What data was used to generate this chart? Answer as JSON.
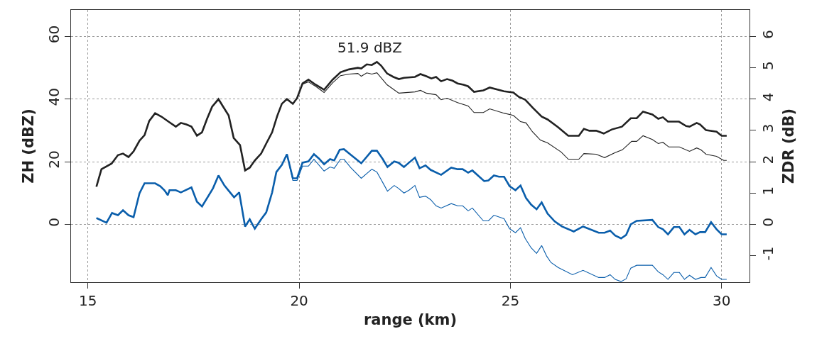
{
  "chart_data": {
    "type": "line",
    "xlabel": "range (km)",
    "ylabel": "ZH (dBZ)",
    "y2label": "ZDR (dB)",
    "xlim": [
      14.6,
      30.66
    ],
    "xticks": [
      15,
      20,
      25,
      30
    ],
    "ylim": [
      -18.5,
      68.5
    ],
    "yticks": [
      0,
      20,
      40,
      60
    ],
    "y2lim": [
      -1.85,
      6.85
    ],
    "y2ticks": [
      -1,
      0,
      1,
      2,
      3,
      4,
      5,
      6
    ],
    "grid": true,
    "marker": "none",
    "line_style": "solid",
    "annotations": [
      {
        "text": "51.9 dBZ",
        "x": 21.84,
        "y": 51.9
      }
    ],
    "series": [
      {
        "color": "#222222",
        "x": [
          15.2,
          15.32,
          15.56,
          15.71,
          15.83,
          15.96,
          16.08,
          16.22,
          16.34,
          16.45,
          16.59,
          16.74,
          16.93,
          17.08,
          17.2,
          17.33,
          17.45,
          17.58,
          17.7,
          17.82,
          17.94,
          18.09,
          18.19,
          18.33,
          18.45,
          18.6,
          18.72,
          18.83,
          18.95,
          19.1,
          19.22,
          19.36,
          19.48,
          19.59,
          19.71,
          19.85,
          19.95,
          20.08,
          20.22,
          20.39,
          20.59,
          20.79,
          20.98,
          21.18,
          21.39,
          21.47,
          21.6,
          21.72,
          21.84,
          21.94,
          22.08,
          22.23,
          22.36,
          22.48,
          22.74,
          22.87,
          23.01,
          23.13,
          23.24,
          23.36,
          23.5,
          23.63,
          23.75,
          23.89,
          24.0,
          24.14,
          24.36,
          24.51,
          24.85,
          25.07,
          25.2,
          25.35,
          25.54,
          25.74,
          25.88,
          26.13,
          26.37,
          26.62,
          26.74,
          26.87,
          27.03,
          27.21,
          27.4,
          27.64,
          27.85,
          27.99,
          28.14,
          28.36,
          28.5,
          28.61,
          28.73,
          28.99,
          29.16,
          29.24,
          29.41,
          29.49,
          29.63,
          29.88,
          30.0,
          30.12
        ],
        "values": [
          12,
          17.6,
          19.4,
          22.1,
          22.6,
          21.5,
          23.3,
          26.7,
          28.5,
          33,
          35.5,
          34.4,
          32.6,
          31.2,
          32.4,
          31.9,
          31.2,
          28.3,
          29.4,
          33.7,
          37.6,
          40,
          37.8,
          34.8,
          27.6,
          25.3,
          17.2,
          18.1,
          20.4,
          22.6,
          25.8,
          29.4,
          34.6,
          38.5,
          40,
          38.5,
          40.3,
          45,
          46.2,
          44.6,
          43,
          46.2,
          48.6,
          49.5,
          50,
          49.8,
          51.1,
          50.9,
          51.9,
          50.7,
          48.2,
          47.1,
          46.4,
          46.8,
          47.1,
          48,
          47.3,
          46.6,
          47.1,
          45.7,
          46.4,
          45.9,
          45,
          44.6,
          44.1,
          42.3,
          42.8,
          43.7,
          42.5,
          42.1,
          40.7,
          39.8,
          37.1,
          34.4,
          33.5,
          31,
          28.3,
          28.3,
          30.5,
          29.9,
          29.9,
          29,
          30.3,
          31.2,
          33.9,
          33.9,
          36,
          35.1,
          33.7,
          34.2,
          32.8,
          32.8,
          31.4,
          31.2,
          32.4,
          31.9,
          30.1,
          29.6,
          28.3,
          28.3
        ]
      },
      {
        "color": "#222222",
        "x": [
          20.08,
          20.22,
          20.39,
          20.59,
          20.79,
          20.98,
          21.18,
          21.39,
          21.47,
          21.6,
          21.72,
          21.84,
          22.08,
          22.36,
          22.74,
          22.87,
          23.01,
          23.24,
          23.36,
          23.5,
          23.75,
          24.0,
          24.14,
          24.36,
          24.51,
          24.85,
          25.07,
          25.24,
          25.37,
          25.52,
          25.71,
          25.88,
          26.2,
          26.37,
          26.62,
          26.74,
          27.03,
          27.23,
          27.48,
          27.65,
          27.87,
          27.99,
          28.14,
          28.36,
          28.5,
          28.61,
          28.75,
          29.0,
          29.24,
          29.41,
          29.51,
          29.63,
          29.88,
          30.05,
          30.12
        ],
        "values": [
          44.8,
          45.5,
          44.1,
          42.1,
          45.2,
          47.5,
          48,
          48.2,
          47.3,
          48.4,
          48,
          48.4,
          44.6,
          41.9,
          42.3,
          42.8,
          41.9,
          41.4,
          39.8,
          40.3,
          38.9,
          37.8,
          35.7,
          35.7,
          36.9,
          35.5,
          34.8,
          32.8,
          32.4,
          29.6,
          26.9,
          26,
          23.1,
          20.8,
          20.8,
          22.6,
          22.4,
          21.3,
          22.9,
          23.8,
          26.5,
          26.5,
          28.3,
          27.1,
          25.8,
          26.2,
          24.7,
          24.7,
          23.3,
          24.4,
          23.8,
          22.4,
          21.7,
          20.4,
          20.4
        ]
      },
      {
        "color": "#0a5eab",
        "axis": "y2",
        "x": [
          15.2,
          15.44,
          15.57,
          15.71,
          15.83,
          15.96,
          16.08,
          16.22,
          16.34,
          16.59,
          16.71,
          16.81,
          16.89,
          16.93,
          17.08,
          17.2,
          17.45,
          17.58,
          17.7,
          17.96,
          18.09,
          18.23,
          18.34,
          18.46,
          18.58,
          18.72,
          18.83,
          18.95,
          19.1,
          19.22,
          19.36,
          19.46,
          19.59,
          19.71,
          19.85,
          19.95,
          20.08,
          20.22,
          20.35,
          20.47,
          20.59,
          20.73,
          20.83,
          20.96,
          21.06,
          21.22,
          21.47,
          21.72,
          21.84,
          21.98,
          22.09,
          22.25,
          22.35,
          22.48,
          22.6,
          22.74,
          22.85,
          22.99,
          23.11,
          23.36,
          23.6,
          23.75,
          23.87,
          24.0,
          24.1,
          24.38,
          24.48,
          24.61,
          24.73,
          24.85,
          24.98,
          25.12,
          25.24,
          25.37,
          25.49,
          25.62,
          25.74,
          25.88,
          26.05,
          26.22,
          26.5,
          26.72,
          27.09,
          27.23,
          27.36,
          27.48,
          27.62,
          27.74,
          27.85,
          27.99,
          28.36,
          28.5,
          28.61,
          28.73,
          28.87,
          29.0,
          29.12,
          29.24,
          29.38,
          29.49,
          29.61,
          29.75,
          29.88,
          30.0,
          30.12
        ],
        "values": [
          0.2,
          0.05,
          0.36,
          0.29,
          0.45,
          0.29,
          0.23,
          0.99,
          1.31,
          1.31,
          1.22,
          1.09,
          0.93,
          1.09,
          1.09,
          1.02,
          1.18,
          0.72,
          0.57,
          1.15,
          1.56,
          1.24,
          1.06,
          0.86,
          1.02,
          -0.07,
          0.16,
          -0.14,
          0.16,
          0.38,
          1.02,
          1.67,
          1.9,
          2.24,
          1.47,
          1.47,
          1.97,
          2.01,
          2.24,
          2.1,
          1.92,
          2.08,
          2.04,
          2.38,
          2.4,
          2.22,
          1.95,
          2.35,
          2.35,
          2.08,
          1.83,
          2.01,
          1.97,
          1.83,
          1.97,
          2.13,
          1.79,
          1.88,
          1.74,
          1.58,
          1.81,
          1.76,
          1.76,
          1.65,
          1.72,
          1.38,
          1.4,
          1.56,
          1.52,
          1.52,
          1.22,
          1.09,
          1.24,
          0.84,
          0.63,
          0.48,
          0.7,
          0.34,
          0.09,
          -0.07,
          -0.23,
          -0.07,
          -0.27,
          -0.27,
          -0.2,
          -0.36,
          -0.45,
          -0.34,
          0,
          0.11,
          0.14,
          -0.09,
          -0.16,
          -0.32,
          -0.09,
          -0.09,
          -0.32,
          -0.18,
          -0.32,
          -0.25,
          -0.25,
          0.07,
          -0.16,
          -0.32,
          -0.32
        ]
      },
      {
        "color": "#0a5eab",
        "axis": "y2",
        "x": [
          19.71,
          19.85,
          19.95,
          20.08,
          20.22,
          20.35,
          20.59,
          20.73,
          20.83,
          20.98,
          21.06,
          21.22,
          21.47,
          21.72,
          21.84,
          21.98,
          22.09,
          22.25,
          22.35,
          22.48,
          22.6,
          22.74,
          22.85,
          22.99,
          23.11,
          23.24,
          23.36,
          23.6,
          23.75,
          23.87,
          24.0,
          24.1,
          24.36,
          24.48,
          24.61,
          24.85,
          24.98,
          25.12,
          25.24,
          25.35,
          25.49,
          25.62,
          25.74,
          25.86,
          25.96,
          26.13,
          26.47,
          26.72,
          27.09,
          27.23,
          27.36,
          27.48,
          27.62,
          27.74,
          27.85,
          27.99,
          28.36,
          28.5,
          28.61,
          28.73,
          28.87,
          29.0,
          29.12,
          29.24,
          29.38,
          29.51,
          29.61,
          29.75,
          29.88,
          30.0,
          30.12
        ],
        "values": [
          2.24,
          1.4,
          1.4,
          1.86,
          1.86,
          2.08,
          1.7,
          1.83,
          1.79,
          2.08,
          2.08,
          1.81,
          1.47,
          1.76,
          1.67,
          1.33,
          1.06,
          1.24,
          1.15,
          1,
          1.09,
          1.24,
          0.86,
          0.9,
          0.79,
          0.59,
          0.52,
          0.66,
          0.59,
          0.59,
          0.43,
          0.52,
          0.11,
          0.11,
          0.29,
          0.18,
          -0.14,
          -0.27,
          -0.11,
          -0.45,
          -0.75,
          -0.93,
          -0.68,
          -1.02,
          -1.22,
          -1.38,
          -1.61,
          -1.47,
          -1.7,
          -1.7,
          -1.61,
          -1.76,
          -1.83,
          -1.74,
          -1.4,
          -1.31,
          -1.31,
          -1.52,
          -1.61,
          -1.76,
          -1.54,
          -1.54,
          -1.76,
          -1.63,
          -1.76,
          -1.7,
          -1.7,
          -1.38,
          -1.65,
          -1.76,
          -1.76
        ]
      }
    ]
  }
}
